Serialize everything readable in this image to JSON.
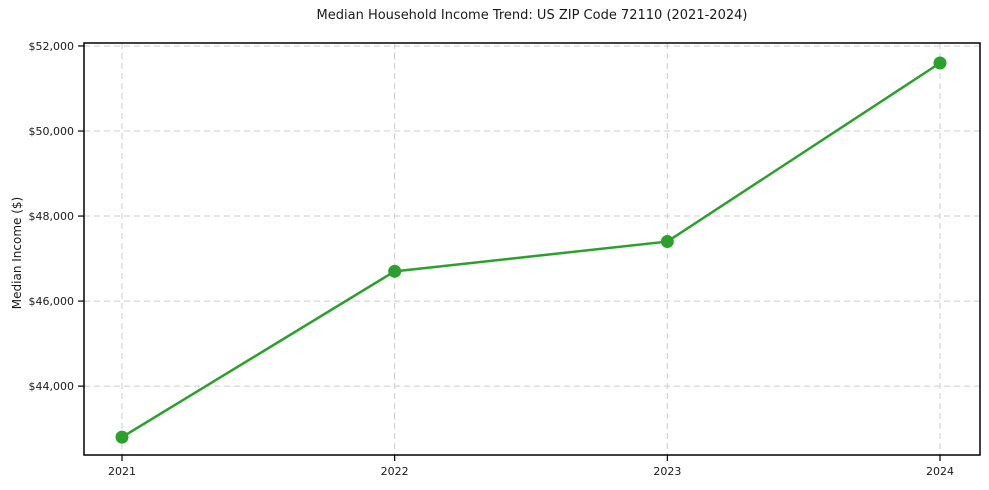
{
  "chart_data": {
    "type": "line",
    "title": "Median Household Income Trend: US ZIP Code 72110 (2021-2024)",
    "xlabel": "",
    "ylabel": "Median Income ($)",
    "x": [
      2021,
      2022,
      2023,
      2024
    ],
    "x_tick_labels": [
      "2021",
      "2022",
      "2023",
      "2024"
    ],
    "series": [
      {
        "name": "Median Household Income",
        "values": [
          42800,
          46700,
          47400,
          51600
        ]
      }
    ],
    "y_ticks": [
      44000,
      46000,
      48000,
      50000,
      52000
    ],
    "y_tick_labels": [
      "$44,000",
      "$46,000",
      "$48,000",
      "$50,000",
      "$52,000"
    ],
    "ylim": [
      42380,
      52070
    ],
    "grid": "on",
    "grid_style": "dashed",
    "legend": "none",
    "colors": {
      "line": "#2ca02c",
      "marker": "#2ca02c",
      "gridline": "#cccccc",
      "spine": "#000000",
      "text": "#1a1a1a",
      "background": "#ffffff"
    }
  }
}
